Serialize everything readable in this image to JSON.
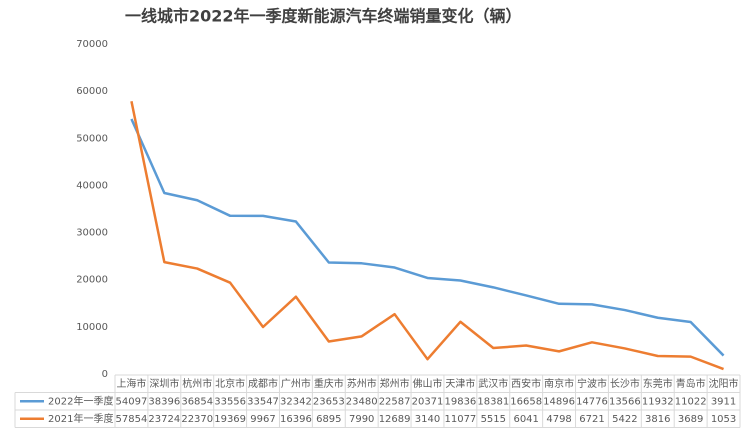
{
  "chart_data": {
    "type": "line",
    "title": "一线城市2022年一季度新能源汽车终端销量变化（辆）",
    "categories": [
      "上海市",
      "深圳市",
      "杭州市",
      "北京市",
      "成都市",
      "广州市",
      "重庆市",
      "苏州市",
      "郑州市",
      "佛山市",
      "天津市",
      "武汉市",
      "西安市",
      "南京市",
      "宁波市",
      "长沙市",
      "东莞市",
      "青岛市",
      "沈阳市"
    ],
    "series": [
      {
        "name": "2022年一季度",
        "color": "#5b9bd5",
        "values": [
          54097,
          38396,
          36854,
          33556,
          33547,
          32342,
          23653,
          23480,
          22587,
          20371,
          19836,
          18381,
          16658,
          14896,
          14776,
          13566,
          11932,
          11022,
          3911
        ]
      },
      {
        "name": "2021年一季度",
        "color": "#ed7d31",
        "values": [
          57854,
          23724,
          22370,
          19369,
          9967,
          16396,
          6895,
          7990,
          12689,
          3140,
          11077,
          5515,
          6041,
          4798,
          6721,
          5422,
          3816,
          3689,
          1053
        ]
      }
    ],
    "ylim": [
      0,
      70000
    ],
    "yticks": [
      0,
      10000,
      20000,
      30000,
      40000,
      50000,
      60000,
      70000
    ],
    "grid": false
  }
}
